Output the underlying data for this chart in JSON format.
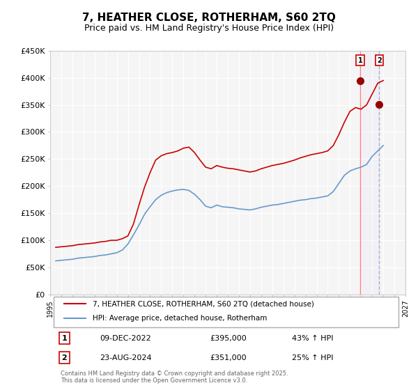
{
  "title": "7, HEATHER CLOSE, ROTHERHAM, S60 2TQ",
  "subtitle": "Price paid vs. HM Land Registry's House Price Index (HPI)",
  "title_fontsize": 11,
  "subtitle_fontsize": 9,
  "ylabel": "",
  "ylim": [
    0,
    450000
  ],
  "yticks": [
    0,
    50000,
    100000,
    150000,
    200000,
    250000,
    300000,
    350000,
    400000,
    450000
  ],
  "ytick_labels": [
    "£0",
    "£50K",
    "£100K",
    "£150K",
    "£200K",
    "£250K",
    "£300K",
    "£350K",
    "£400K",
    "£450K"
  ],
  "xlim_start": 1995,
  "xlim_end": 2027,
  "line1_color": "#cc0000",
  "line2_color": "#6699cc",
  "marker1_color": "#990000",
  "bg_color": "#ffffff",
  "plot_bg_color": "#f5f5f5",
  "grid_color": "#ffffff",
  "sale1_date": 2022.93,
  "sale1_price": 395000,
  "sale1_label": "1",
  "sale2_date": 2024.64,
  "sale2_price": 351000,
  "sale2_label": "2",
  "vline1_color": "#ff6666",
  "vline2_color": "#9999cc",
  "legend_line1": "7, HEATHER CLOSE, ROTHERHAM, S60 2TQ (detached house)",
  "legend_line2": "HPI: Average price, detached house, Rotherham",
  "table_row1": [
    "1",
    "09-DEC-2022",
    "£395,000",
    "43% ↑ HPI"
  ],
  "table_row2": [
    "2",
    "23-AUG-2024",
    "£351,000",
    "25% ↑ HPI"
  ],
  "footer": "Contains HM Land Registry data © Crown copyright and database right 2025.\nThis data is licensed under the Open Government Licence v3.0.",
  "hpi_data": {
    "years": [
      1995.5,
      1996.0,
      1996.5,
      1997.0,
      1997.5,
      1998.0,
      1998.5,
      1999.0,
      1999.5,
      2000.0,
      2000.5,
      2001.0,
      2001.5,
      2002.0,
      2002.5,
      2003.0,
      2003.5,
      2004.0,
      2004.5,
      2005.0,
      2005.5,
      2006.0,
      2006.5,
      2007.0,
      2007.5,
      2008.0,
      2008.5,
      2009.0,
      2009.5,
      2010.0,
      2010.5,
      2011.0,
      2011.5,
      2012.0,
      2012.5,
      2013.0,
      2013.5,
      2014.0,
      2014.5,
      2015.0,
      2015.5,
      2016.0,
      2016.5,
      2017.0,
      2017.5,
      2018.0,
      2018.5,
      2019.0,
      2019.5,
      2020.0,
      2020.5,
      2021.0,
      2021.5,
      2022.0,
      2022.5,
      2023.0,
      2023.5,
      2024.0,
      2024.5,
      2025.0
    ],
    "values": [
      62000,
      63000,
      64000,
      65000,
      67000,
      68000,
      69000,
      70000,
      72000,
      73000,
      75000,
      77000,
      82000,
      93000,
      110000,
      128000,
      148000,
      162000,
      175000,
      183000,
      188000,
      191000,
      193000,
      194000,
      192000,
      185000,
      175000,
      163000,
      160000,
      165000,
      162000,
      161000,
      160000,
      158000,
      157000,
      156000,
      158000,
      161000,
      163000,
      165000,
      166000,
      168000,
      170000,
      172000,
      174000,
      175000,
      177000,
      178000,
      180000,
      182000,
      190000,
      205000,
      220000,
      228000,
      232000,
      235000,
      240000,
      255000,
      265000,
      275000
    ]
  },
  "hpi_red_data": {
    "years": [
      1995.5,
      1996.0,
      1996.5,
      1997.0,
      1997.5,
      1998.0,
      1998.5,
      1999.0,
      1999.5,
      2000.0,
      2000.5,
      2001.0,
      2001.5,
      2002.0,
      2002.5,
      2003.0,
      2003.5,
      2004.0,
      2004.5,
      2005.0,
      2005.5,
      2006.0,
      2006.5,
      2007.0,
      2007.5,
      2008.0,
      2008.5,
      2009.0,
      2009.5,
      2010.0,
      2010.5,
      2011.0,
      2011.5,
      2012.0,
      2012.5,
      2013.0,
      2013.5,
      2014.0,
      2014.5,
      2015.0,
      2015.5,
      2016.0,
      2016.5,
      2017.0,
      2017.5,
      2018.0,
      2018.5,
      2019.0,
      2019.5,
      2020.0,
      2020.5,
      2021.0,
      2021.5,
      2022.0,
      2022.5,
      2023.0,
      2023.5,
      2024.0,
      2024.5,
      2025.0
    ],
    "values": [
      87000,
      88000,
      89000,
      90000,
      92000,
      93000,
      94000,
      95000,
      97000,
      98000,
      100000,
      100000,
      103000,
      108000,
      130000,
      165000,
      198000,
      225000,
      248000,
      256000,
      260000,
      262000,
      265000,
      270000,
      272000,
      262000,
      248000,
      235000,
      232000,
      238000,
      235000,
      233000,
      232000,
      230000,
      228000,
      226000,
      228000,
      232000,
      235000,
      238000,
      240000,
      242000,
      245000,
      248000,
      252000,
      255000,
      258000,
      260000,
      262000,
      265000,
      275000,
      295000,
      318000,
      338000,
      345000,
      342000,
      350000,
      370000,
      390000,
      395000
    ]
  }
}
